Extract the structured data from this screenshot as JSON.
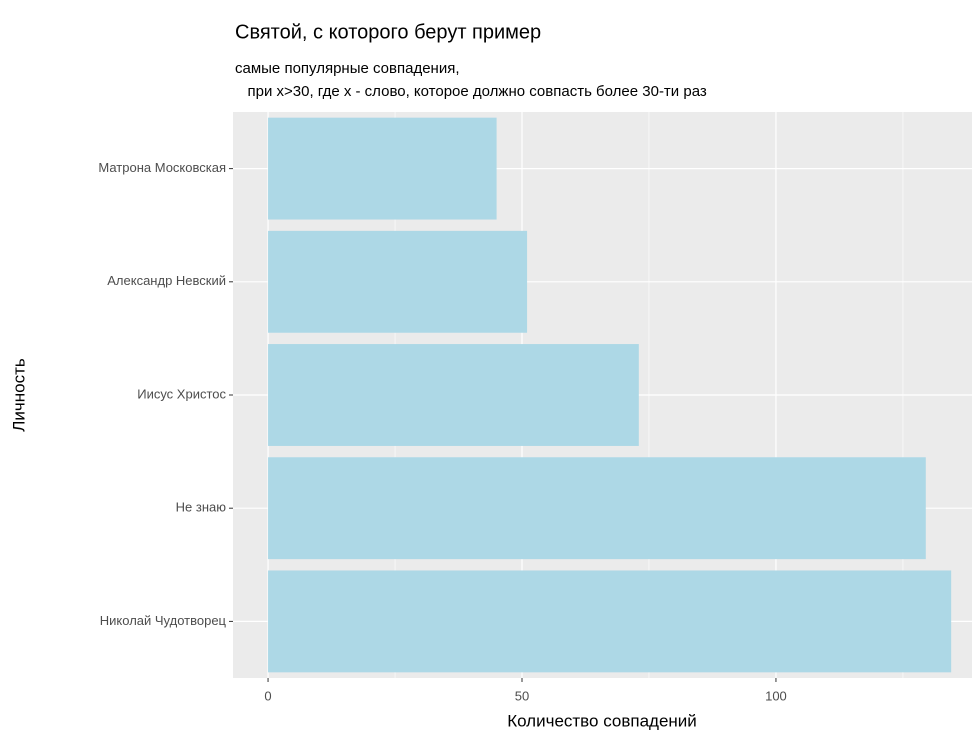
{
  "chart_data": {
    "type": "bar",
    "orientation": "horizontal",
    "title": "Святой, с которого берут пример",
    "subtitle": [
      "самые популярные совпадения,",
      "   при x>30, где x - слово, которое должно совпасть более 30-ти раз"
    ],
    "x_label": "Количество совпадений",
    "y_label": "Личность",
    "categories": [
      "Матрона Московская",
      "Александр Невский",
      "Иисус Христос",
      "Не знаю",
      "Николай Чудотворец"
    ],
    "values": [
      45,
      51,
      73,
      129.5,
      134.5
    ],
    "color": "#add8e6",
    "xlim": [
      -6.9,
      138.6
    ],
    "xticks": [
      0,
      50,
      100
    ],
    "grid": true
  }
}
